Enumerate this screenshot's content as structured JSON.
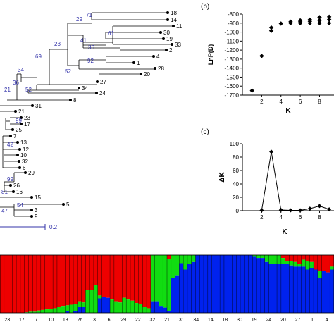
{
  "panels": {
    "b": {
      "tag": "(b)"
    },
    "c": {
      "tag": "(c)"
    }
  },
  "tree": {
    "scale_label": "0.2",
    "leaves": [
      "18",
      "14",
      "11",
      "30",
      "19",
      "33",
      "2",
      "4",
      "1",
      "28",
      "20",
      "27",
      "34",
      "24",
      "8",
      "31",
      "21",
      "23",
      "17",
      "25",
      "7",
      "13",
      "12",
      "10",
      "32",
      "6",
      "29",
      "26",
      "16",
      "15",
      "5",
      "3",
      "9"
    ],
    "bootstraps": [
      "71",
      "29",
      "41",
      "61",
      "36",
      "23",
      "92",
      "69",
      "52",
      "34",
      "36",
      "52",
      "21",
      "99",
      "42",
      "99",
      "81",
      "47",
      "54"
    ]
  },
  "chart_data": [
    {
      "panel": "b",
      "type": "scatter",
      "xlabel": "K",
      "ylabel": "LnP(D)",
      "xlim": [
        0,
        9.5
      ],
      "ylim": [
        -1700,
        -800
      ],
      "xticks": [
        2,
        4,
        6,
        8
      ],
      "yticks": [
        -1700,
        -1600,
        -1500,
        -1400,
        -1300,
        -1200,
        -1100,
        -1000,
        -900,
        -800
      ],
      "series": [
        {
          "marker": "diamond",
          "points": [
            [
              1,
              -1650
            ],
            [
              2,
              -1265
            ],
            [
              3,
              -985
            ],
            [
              3,
              -950
            ],
            [
              4,
              -905
            ],
            [
              5,
              -900
            ],
            [
              5,
              -885
            ],
            [
              6,
              -900
            ],
            [
              6,
              -885
            ],
            [
              6,
              -870
            ],
            [
              7,
              -900
            ],
            [
              7,
              -880
            ],
            [
              7,
              -862
            ],
            [
              8,
              -900
            ],
            [
              8,
              -870
            ],
            [
              8,
              -835
            ],
            [
              9,
              -900
            ],
            [
              9,
              -860
            ],
            [
              9,
              -830
            ]
          ]
        }
      ]
    },
    {
      "panel": "c",
      "type": "line",
      "xlabel": "K",
      "ylabel": "ΔK",
      "xlim": [
        0,
        9.5
      ],
      "ylim": [
        0,
        100
      ],
      "xticks": [
        2,
        4,
        6,
        8
      ],
      "yticks": [
        0,
        20,
        40,
        60,
        80,
        100
      ],
      "x": [
        2,
        3,
        4,
        5,
        6,
        7,
        8,
        9
      ],
      "values": [
        0.5,
        88,
        1,
        0.5,
        0.5,
        3,
        7,
        2
      ]
    },
    {
      "panel": "bottom",
      "type": "bar",
      "stacked": true,
      "colors": {
        "red": "#ee0000",
        "green": "#11dd11",
        "blue": "#0022ee"
      },
      "categories": [
        "23",
        "17",
        "7",
        "10",
        "13",
        "26",
        "3",
        "6",
        "29",
        "22",
        "32",
        "21",
        "31",
        "34",
        "14",
        "18",
        "30",
        "19",
        "24",
        "20",
        "27",
        "1",
        "4"
      ],
      "bars": [
        [
          1.0,
          0.0,
          0.0
        ],
        [
          1.0,
          0.0,
          0.0
        ],
        [
          1.0,
          0.0,
          0.0
        ],
        [
          1.0,
          0.0,
          0.0
        ],
        [
          1.0,
          0.0,
          0.0
        ],
        [
          1.0,
          0.0,
          0.0
        ],
        [
          0.99,
          0.01,
          0.0
        ],
        [
          0.98,
          0.02,
          0.0
        ],
        [
          0.98,
          0.02,
          0.0
        ],
        [
          0.96,
          0.04,
          0.0
        ],
        [
          0.95,
          0.05,
          0.0
        ],
        [
          0.94,
          0.06,
          0.0
        ],
        [
          0.93,
          0.07,
          0.0
        ],
        [
          0.92,
          0.08,
          0.0
        ],
        [
          0.9,
          0.1,
          0.0
        ],
        [
          0.88,
          0.12,
          0.0
        ],
        [
          0.87,
          0.1,
          0.03
        ],
        [
          0.86,
          0.14,
          0.0
        ],
        [
          0.85,
          0.12,
          0.03
        ],
        [
          0.8,
          0.1,
          0.1
        ],
        [
          0.82,
          0.08,
          0.1
        ],
        [
          0.6,
          0.4,
          0.0
        ],
        [
          0.6,
          0.4,
          0.0
        ],
        [
          0.52,
          0.48,
          0.0
        ],
        [
          0.7,
          0.05,
          0.25
        ],
        [
          0.72,
          0.0,
          0.28
        ],
        [
          0.74,
          0.0,
          0.26
        ],
        [
          0.77,
          0.23,
          0.0
        ],
        [
          0.8,
          0.2,
          0.0
        ],
        [
          0.82,
          0.18,
          0.0
        ],
        [
          0.74,
          0.26,
          0.0
        ],
        [
          0.77,
          0.23,
          0.0
        ],
        [
          0.79,
          0.21,
          0.0
        ],
        [
          0.83,
          0.17,
          0.0
        ],
        [
          0.85,
          0.15,
          0.0
        ],
        [
          0.9,
          0.1,
          0.0
        ],
        [
          0.92,
          0.08,
          0.0
        ],
        [
          0.0,
          0.8,
          0.2
        ],
        [
          0.0,
          0.8,
          0.2
        ],
        [
          0.0,
          0.88,
          0.12
        ],
        [
          0.0,
          0.91,
          0.09
        ],
        [
          0.07,
          0.9,
          0.03
        ],
        [
          0.0,
          0.4,
          0.6
        ],
        [
          0.0,
          0.35,
          0.65
        ],
        [
          0.0,
          0.14,
          0.86
        ],
        [
          0.0,
          0.25,
          0.75
        ],
        [
          0.0,
          0.15,
          0.85
        ],
        [
          0.0,
          0.12,
          0.88
        ],
        [
          0.0,
          0.0,
          1.0
        ],
        [
          0.0,
          0.0,
          1.0
        ],
        [
          0.0,
          0.0,
          1.0
        ],
        [
          0.0,
          0.0,
          1.0
        ],
        [
          0.0,
          0.0,
          1.0
        ],
        [
          0.0,
          0.0,
          1.0
        ],
        [
          0.0,
          0.0,
          1.0
        ],
        [
          0.0,
          0.0,
          1.0
        ],
        [
          0.0,
          0.0,
          1.0
        ],
        [
          0.0,
          0.0,
          1.0
        ],
        [
          0.0,
          0.0,
          1.0
        ],
        [
          0.0,
          0.0,
          1.0
        ],
        [
          0.0,
          0.0,
          1.0
        ],
        [
          0.0,
          0.0,
          1.0
        ],
        [
          0.0,
          0.03,
          0.97
        ],
        [
          0.0,
          0.05,
          0.95
        ],
        [
          0.0,
          0.05,
          0.95
        ],
        [
          0.0,
          0.12,
          0.88
        ],
        [
          0.0,
          0.15,
          0.85
        ],
        [
          0.0,
          0.15,
          0.85
        ],
        [
          0.0,
          0.15,
          0.85
        ],
        [
          0.05,
          0.1,
          0.85
        ],
        [
          0.1,
          0.05,
          0.85
        ],
        [
          0.1,
          0.08,
          0.82
        ],
        [
          0.12,
          0.08,
          0.8
        ],
        [
          0.15,
          0.05,
          0.8
        ],
        [
          0.08,
          0.12,
          0.8
        ],
        [
          0.1,
          0.15,
          0.75
        ],
        [
          0.12,
          0.1,
          0.78
        ],
        [
          0.25,
          0.0,
          0.75
        ],
        [
          0.28,
          0.12,
          0.6
        ],
        [
          0.27,
          0.0,
          0.73
        ],
        [
          0.3,
          0.0,
          0.7
        ],
        [
          0.2,
          0.05,
          0.75
        ]
      ]
    }
  ]
}
